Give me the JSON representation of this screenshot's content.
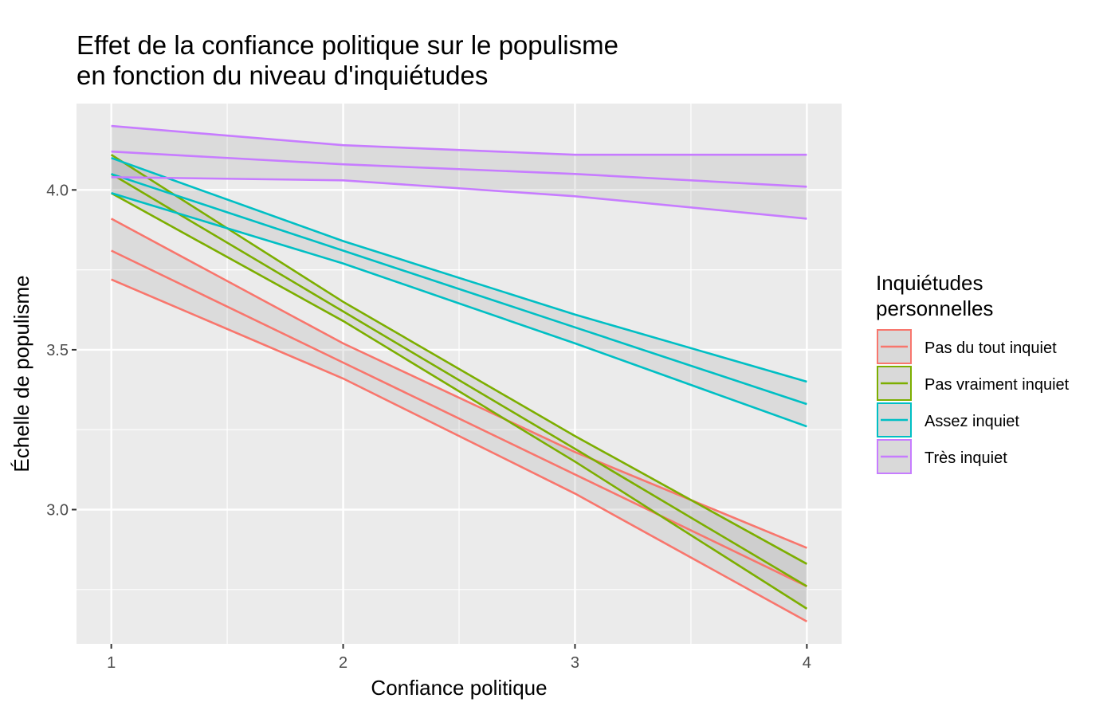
{
  "chart_data": {
    "type": "line",
    "title_line1": "Effet de la confiance politique sur le populisme",
    "title_line2": "en fonction du niveau d'inquiétudes",
    "xlabel": "Confiance politique",
    "ylabel": "Échelle de populisme",
    "xlim": [
      0.85,
      4.15
    ],
    "ylim": [
      2.58,
      4.27
    ],
    "x_ticks": [
      1,
      2,
      3,
      4
    ],
    "x_tick_labels": [
      "1",
      "2",
      "3",
      "4"
    ],
    "y_ticks": [
      3.0,
      3.5,
      4.0
    ],
    "y_tick_labels": [
      "3.0",
      "3.5",
      "4.0"
    ],
    "grid": true,
    "legend_title_line1": "Inquiétudes",
    "legend_title_line2": "personnelles",
    "legend_position": "right",
    "x": [
      1,
      2,
      3,
      4
    ],
    "series": [
      {
        "name": "Pas du tout inquiet",
        "color": "#F8766D",
        "values": [
          3.81,
          3.46,
          3.11,
          2.76
        ],
        "lower": [
          3.72,
          3.41,
          3.05,
          2.65
        ],
        "upper": [
          3.91,
          3.52,
          3.18,
          2.88
        ]
      },
      {
        "name": "Pas vraiment inquiet",
        "color": "#7CAE00",
        "values": [
          4.05,
          3.62,
          3.19,
          2.76
        ],
        "lower": [
          3.99,
          3.59,
          3.15,
          2.69
        ],
        "upper": [
          4.11,
          3.65,
          3.23,
          2.83
        ]
      },
      {
        "name": "Assez inquiet",
        "color": "#00BFC4",
        "values": [
          4.05,
          3.81,
          3.57,
          3.33
        ],
        "lower": [
          3.99,
          3.77,
          3.52,
          3.26
        ],
        "upper": [
          4.1,
          3.84,
          3.61,
          3.4
        ]
      },
      {
        "name": "Très inquiet",
        "color": "#C77CFF",
        "values": [
          4.12,
          4.08,
          4.05,
          4.01
        ],
        "lower": [
          4.04,
          4.03,
          3.98,
          3.91
        ],
        "upper": [
          4.2,
          4.14,
          4.11,
          4.11
        ]
      }
    ]
  }
}
